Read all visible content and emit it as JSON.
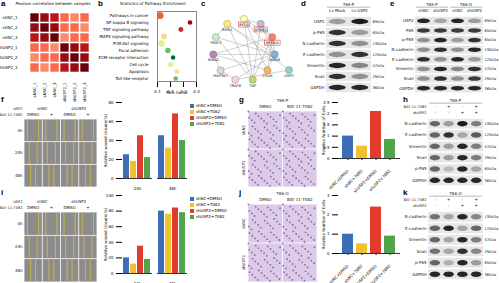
{
  "chart_data": [
    {
      "panel": "a",
      "type": "heatmap",
      "title": "Pearson correlation between samples",
      "x": [
        "shNC_1",
        "shNC_2",
        "shNC_3",
        "shUSP2_1",
        "shUSP2_2",
        "shUSP2_3"
      ],
      "y": [
        "shNC_1",
        "shNC_2",
        "shNC_3",
        "shUSP2_1",
        "shUSP2_2",
        "shUSP2_3"
      ],
      "cells": [
        [
          1,
          0.99,
          0.98,
          0.95,
          0.94,
          0.95
        ],
        [
          0.99,
          1,
          0.99,
          0.95,
          0.95,
          0.94
        ],
        [
          0.98,
          0.99,
          1,
          0.94,
          0.95,
          0.95
        ],
        [
          0.95,
          0.95,
          0.94,
          1,
          0.99,
          0.98
        ],
        [
          0.94,
          0.95,
          0.95,
          0.99,
          1,
          0.99
        ],
        [
          0.95,
          0.94,
          0.95,
          0.98,
          0.99,
          1
        ]
      ],
      "color_range": [
        0.9,
        1
      ]
    },
    {
      "panel": "b",
      "type": "scatter",
      "title": "Statistics of Pathway Enrichment",
      "x_label": "Rich factor",
      "categories": [
        "Pathways in cancer",
        "NF-kappa B signaling",
        "TNF signaling pathway",
        "MAPK signaling pathway",
        "PI3K-Akt signaling",
        "Focal adhesion",
        "ECM-receptor interaction",
        "Cell cycle",
        "Apoptosis",
        "Toll-like receptor"
      ],
      "values": [
        0.12,
        0.35,
        0.28,
        0.15,
        0.13,
        0.18,
        0.22,
        0.2,
        0.25,
        0.24
      ],
      "gene_number": [
        40,
        12,
        14,
        25,
        30,
        18,
        10,
        15,
        12,
        11
      ],
      "qvalue": [
        0.01,
        0.001,
        0.005,
        0.02,
        0.03,
        0.04,
        0.05,
        0.03,
        0.02,
        0.04
      ],
      "xlim": [
        0.1,
        0.4
      ],
      "xticks": [
        0.1,
        0.2,
        0.3,
        0.4
      ]
    },
    {
      "type": "bar",
      "y_label": "Relative wound closure(%)",
      "categories": [
        "24h",
        "48h"
      ],
      "series": [
        {
          "name": "shNC+DMSO",
          "color": "#3c6db5",
          "values": [
            25,
            45
          ]
        },
        {
          "name": "shNC+7082",
          "color": "#f0c02e",
          "values": [
            18,
            32
          ]
        },
        {
          "name": "shUSP2+DMSO",
          "color": "#e23a2c",
          "values": [
            45,
            68
          ]
        },
        {
          "name": "shUSP2+7082",
          "color": "#52a34a",
          "values": [
            22,
            40
          ]
        }
      ],
      "ylim": [
        0,
        80
      ],
      "yticks": [
        0,
        20,
        40,
        60,
        80
      ],
      "legend": "right"
    },
    {
      "type": "bar",
      "y_label": "Relative Number of Cells",
      "categories": [
        "shNC+DMSO",
        "shNC+7082",
        "shUSP2+DMSO",
        "shUSP2+7082"
      ],
      "values": [
        1,
        0.55,
        2.1,
        0.85
      ],
      "colors": [
        "#3c6db5",
        "#f0c02e",
        "#e23a2c",
        "#52a34a"
      ],
      "ylim": [
        0,
        2.5
      ],
      "yticks": [
        0,
        0.5,
        1,
        1.5,
        2,
        2.5
      ]
    },
    {
      "type": "bar",
      "y_label": "Relative wound closure(%)",
      "categories": [
        "24h",
        "48h"
      ],
      "series": [
        {
          "name": "shNC+DMSO",
          "color": "#3c6db5",
          "values": [
            20,
            80
          ]
        },
        {
          "name": "shNC+7082",
          "color": "#f0c02e",
          "values": [
            12,
            76
          ]
        },
        {
          "name": "shUSP2+DMSO",
          "color": "#e23a2c",
          "values": [
            35,
            84
          ]
        },
        {
          "name": "shUSP2+7082",
          "color": "#52a34a",
          "values": [
            18,
            78
          ]
        }
      ],
      "ylim": [
        0,
        100
      ],
      "yticks": [
        0,
        20,
        40,
        60,
        80,
        100
      ],
      "legend": "right"
    },
    {
      "type": "bar",
      "y_label": "Relative Number of Cells",
      "categories": [
        "shNC+DMSO",
        "shNC+7082",
        "shUSP2+DMSO",
        "shUSP2+7082"
      ],
      "values": [
        1,
        0.5,
        2.4,
        0.9
      ],
      "colors": [
        "#3c6db5",
        "#f0c02e",
        "#e23a2c",
        "#52a34a"
      ],
      "ylim": [
        0,
        3
      ],
      "yticks": [
        0,
        1,
        2,
        3
      ]
    }
  ],
  "network": {
    "panel": "c",
    "nodes": [
      "USP2",
      "RELA",
      "NFKB1",
      "NFKBIA",
      "IKBKB",
      "CHUK",
      "TNF",
      "TRAF6",
      "MAP3K7",
      "IKBKG",
      "TRAF2",
      "RIPK1"
    ],
    "edges": [
      [
        1,
        2
      ],
      [
        1,
        3
      ],
      [
        1,
        4
      ],
      [
        1,
        5
      ],
      [
        2,
        3
      ],
      [
        2,
        4
      ],
      [
        3,
        4
      ],
      [
        3,
        5
      ],
      [
        4,
        5
      ],
      [
        4,
        9
      ],
      [
        5,
        9
      ],
      [
        6,
        1
      ],
      [
        6,
        2
      ],
      [
        6,
        10
      ],
      [
        6,
        11
      ],
      [
        7,
        8
      ],
      [
        7,
        4
      ],
      [
        8,
        4
      ],
      [
        8,
        9
      ],
      [
        10,
        11
      ],
      [
        10,
        4
      ],
      [
        11,
        4
      ],
      [
        7,
        0
      ],
      [
        11,
        0
      ],
      [
        3,
        9
      ],
      [
        6,
        3
      ]
    ],
    "highlight": [
      "RELA",
      "NFKB1",
      "NFKBIA"
    ]
  },
  "blots": [
    {
      "panel": "d",
      "header": [
        {
          "cells": [
            {
              "text": "769-P",
              "span": 2
            }
          ]
        },
        {
          "cells": [
            {
              "text": "Lv-Mock",
              "span": 1
            },
            {
              "text": "Lv-USP2",
              "span": 1
            }
          ]
        }
      ],
      "rows": [
        {
          "protein": "USP2",
          "size": "69kDa",
          "bands": [
            0.35,
            0.95
          ]
        },
        {
          "protein": "p-P65",
          "size": "65kDa",
          "bands": [
            0.85,
            0.35
          ]
        },
        {
          "protein": "N-cadherin",
          "size": "130kDa",
          "bands": [
            0.85,
            0.4
          ]
        },
        {
          "protein": "E-cadherin",
          "size": "125kDa",
          "bands": [
            0.4,
            0.85
          ]
        },
        {
          "protein": "Vimentin",
          "size": "57kDa",
          "bands": [
            0.9,
            0.45
          ]
        },
        {
          "protein": "Snail",
          "size": "29kDa",
          "bands": [
            0.85,
            0.4
          ]
        },
        {
          "protein": "GAPDH",
          "size": "36kDa",
          "bands": [
            0.9,
            0.9
          ]
        }
      ]
    },
    {
      "panel": "e",
      "header": [
        {
          "cells": [
            {
              "text": "769-P",
              "span": 2
            },
            {
              "text": "786-O",
              "span": 2
            }
          ]
        },
        {
          "cells": [
            {
              "text": "shNC",
              "span": 1
            },
            {
              "text": "shUSP2",
              "span": 1
            },
            {
              "text": "shNC",
              "span": 1
            },
            {
              "text": "shUSP2",
              "span": 1
            }
          ]
        }
      ],
      "rows": [
        {
          "protein": "USP2",
          "size": "69kDa",
          "bands": [
            0.9,
            0.3,
            0.9,
            0.35
          ]
        },
        {
          "protein": "P65",
          "size": "65kDa",
          "bands": [
            0.8,
            0.8,
            0.8,
            0.8
          ]
        },
        {
          "protein": "p-P65",
          "size": "65kDa",
          "bands": [
            0.4,
            0.9,
            0.35,
            0.85
          ]
        },
        {
          "protein": "N-cadherin",
          "size": "130kDa",
          "bands": [
            0.4,
            0.85,
            0.4,
            0.9
          ]
        },
        {
          "protein": "E-cadherin",
          "size": "125kDa",
          "bands": [
            0.85,
            0.4,
            0.9,
            0.35
          ]
        },
        {
          "protein": "Vimentin",
          "size": "57kDa",
          "bands": [
            0.4,
            0.9,
            0.45,
            0.85
          ]
        },
        {
          "protein": "Snail",
          "size": "29kDa",
          "bands": [
            0.4,
            0.85,
            0.4,
            0.8
          ]
        },
        {
          "protein": "GAPDH",
          "size": "36kDa",
          "bands": [
            0.9,
            0.9,
            0.9,
            0.9
          ]
        }
      ]
    },
    {
      "panel": "h",
      "header": [
        {
          "cells": [
            {
              "text": "769-P",
              "span": 4
            }
          ]
        },
        {
          "label": "BAY 11-7082",
          "cells": [
            {
              "text": "-",
              "span": 1
            },
            {
              "text": "+",
              "span": 1
            },
            {
              "text": "-",
              "span": 1
            },
            {
              "text": "+",
              "span": 1
            }
          ]
        },
        {
          "label": "shUSP2",
          "cells": [
            {
              "text": "-",
              "span": 1
            },
            {
              "text": "-",
              "span": 1
            },
            {
              "text": "+",
              "span": 1
            },
            {
              "text": "+",
              "span": 1
            }
          ]
        }
      ],
      "rows": [
        {
          "protein": "N-cadherin",
          "size": "130kDa",
          "bands": [
            0.6,
            0.35,
            0.95,
            0.5
          ]
        },
        {
          "protein": "E-cadherin",
          "size": "125kDa",
          "bands": [
            0.6,
            0.85,
            0.3,
            0.65
          ]
        },
        {
          "protein": "Vimentin",
          "size": "57kDa",
          "bands": [
            0.6,
            0.35,
            0.9,
            0.5
          ]
        },
        {
          "protein": "Snail",
          "size": "29kDa",
          "bands": [
            0.6,
            0.35,
            0.9,
            0.5
          ]
        },
        {
          "protein": "p-P65",
          "size": "65kDa",
          "bands": [
            0.6,
            0.2,
            0.9,
            0.3
          ]
        },
        {
          "protein": "GAPDH",
          "size": "36kDa",
          "bands": [
            0.9,
            0.9,
            0.9,
            0.9
          ]
        }
      ]
    },
    {
      "panel": "k",
      "header": [
        {
          "cells": [
            {
              "text": "786-O",
              "span": 4
            }
          ]
        },
        {
          "label": "BAY 11-7082",
          "cells": [
            {
              "text": "-",
              "span": 1
            },
            {
              "text": "+",
              "span": 1
            },
            {
              "text": "-",
              "span": 1
            },
            {
              "text": "+",
              "span": 1
            }
          ]
        },
        {
          "label": "shUSP2",
          "cells": [
            {
              "text": "-",
              "span": 1
            },
            {
              "text": "-",
              "span": 1
            },
            {
              "text": "+",
              "span": 1
            },
            {
              "text": "+",
              "span": 1
            }
          ]
        }
      ],
      "rows": [
        {
          "protein": "N-cadherin",
          "size": "130kDa",
          "bands": [
            0.55,
            0.3,
            0.9,
            0.45
          ]
        },
        {
          "protein": "E-cadherin",
          "size": "125kDa",
          "bands": [
            0.6,
            0.9,
            0.3,
            0.6
          ]
        },
        {
          "protein": "Vimentin",
          "size": "57kDa",
          "bands": [
            0.6,
            0.3,
            0.9,
            0.5
          ]
        },
        {
          "protein": "Snail",
          "size": "29kDa",
          "bands": [
            0.55,
            0.3,
            0.85,
            0.45
          ]
        },
        {
          "protein": "p-P65",
          "size": "65kDa",
          "bands": [
            0.6,
            0.25,
            0.9,
            0.35
          ]
        },
        {
          "protein": "GAPDH",
          "size": "36kDa",
          "bands": [
            0.9,
            0.9,
            0.9,
            0.9
          ]
        }
      ]
    }
  ],
  "images": [
    {
      "panel": "f",
      "kind": "wound",
      "header": [
        {
          "label": "USP2",
          "cells": [
            {
              "text": "shNC",
              "span": 2
            },
            {
              "text": "shUSP2",
              "span": 2
            }
          ]
        },
        {
          "label": "BAY 11-7082",
          "cells": [
            {
              "text": "DMSO",
              "span": 1
            },
            {
              "text": "+",
              "span": 1
            },
            {
              "text": "DMSO",
              "span": 1
            },
            {
              "text": "+",
              "span": 1
            }
          ]
        }
      ],
      "rows": [
        "0h",
        "24h",
        "48h"
      ]
    },
    {
      "panel": "g",
      "kind": "transwell",
      "header": [
        {
          "cells": [
            {
              "text": "769-P",
              "span": 2
            }
          ]
        },
        {
          "cells": [
            {
              "text": "DMSO",
              "span": 1
            },
            {
              "text": "BAY 11-7082",
              "span": 1
            }
          ]
        }
      ],
      "rows": [
        "shNC",
        "shUSP2"
      ]
    },
    {
      "panel": "i",
      "kind": "wound",
      "header": [
        {
          "label": "USP2",
          "cells": [
            {
              "text": "shNC",
              "span": 2
            },
            {
              "text": "shUSP2",
              "span": 2
            }
          ]
        },
        {
          "label": "BAY 11-7082",
          "cells": [
            {
              "text": "DMSO",
              "span": 1
            },
            {
              "text": "+",
              "span": 1
            },
            {
              "text": "DMSO",
              "span": 1
            },
            {
              "text": "+",
              "span": 1
            }
          ]
        }
      ],
      "rows": [
        "0h",
        "24h",
        "48h"
      ]
    },
    {
      "panel": "j",
      "kind": "transwell",
      "header": [
        {
          "cells": [
            {
              "text": "786-O",
              "span": 2
            }
          ]
        },
        {
          "cells": [
            {
              "text": "DMSO",
              "span": 1
            },
            {
              "text": "BAY 11-7082",
              "span": 1
            }
          ]
        }
      ],
      "rows": [
        "shNC",
        "shUSP2"
      ]
    }
  ]
}
